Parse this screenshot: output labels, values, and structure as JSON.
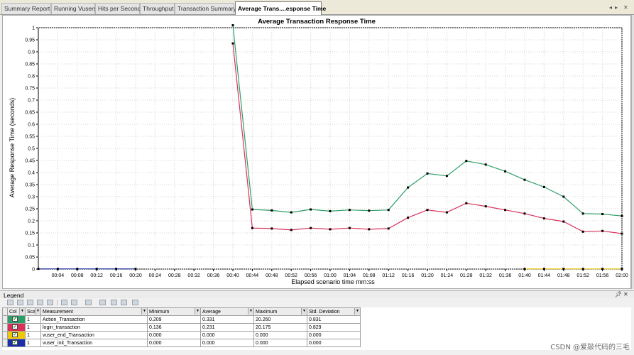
{
  "tabs": [
    {
      "label": "Summary Report",
      "active": false
    },
    {
      "label": "Running Vusers",
      "active": false
    },
    {
      "label": "Hits per Second",
      "active": false
    },
    {
      "label": "Throughput",
      "active": false
    },
    {
      "label": "Transaction Summary",
      "active": false
    },
    {
      "label": "Average Trans....esponse Time",
      "active": true
    }
  ],
  "tab_nav": {
    "prev": "◂",
    "next": "▸",
    "close": "✕"
  },
  "chart_data": {
    "type": "line",
    "title": "Average Transaction Response Time",
    "xlabel": "Elapsed scenario time mm:ss",
    "ylabel": "Average Response Time (seconds)",
    "ylim": [
      0,
      1
    ],
    "xlim_seconds": [
      0,
      120
    ],
    "y_ticks": [
      "0",
      "0.05",
      "0.1",
      "0.15",
      "0.2",
      "0.25",
      "0.3",
      "0.35",
      "0.4",
      "0.45",
      "0.5",
      "0.55",
      "0.6",
      "0.65",
      "0.7",
      "0.75",
      "0.8",
      "0.85",
      "0.9",
      "0.95",
      "1"
    ],
    "x_ticks": [
      "00:04",
      "00:08",
      "00:12",
      "00:16",
      "00:20",
      "00:24",
      "00:28",
      "00:32",
      "00:36",
      "00:40",
      "00:44",
      "00:48",
      "00:52",
      "00:56",
      "01:00",
      "01:04",
      "01:08",
      "01:12",
      "01:16",
      "01:20",
      "01:24",
      "01:28",
      "01:32",
      "01:36",
      "01:40",
      "01:44",
      "01:48",
      "01:52",
      "01:56",
      "02:00"
    ],
    "grid": true,
    "series": [
      {
        "name": "Action_Transaction",
        "color": "#2e9e68",
        "points": [
          [
            40,
            1.01
          ],
          [
            44,
            0.247
          ],
          [
            48,
            0.243
          ],
          [
            52,
            0.235
          ],
          [
            56,
            0.247
          ],
          [
            60,
            0.24
          ],
          [
            64,
            0.245
          ],
          [
            68,
            0.242
          ],
          [
            72,
            0.245
          ],
          [
            76,
            0.338
          ],
          [
            80,
            0.396
          ],
          [
            84,
            0.386
          ],
          [
            88,
            0.448
          ],
          [
            92,
            0.433
          ],
          [
            96,
            0.405
          ],
          [
            100,
            0.37
          ],
          [
            104,
            0.34
          ],
          [
            108,
            0.3
          ],
          [
            112,
            0.23
          ],
          [
            116,
            0.228
          ],
          [
            120,
            0.22
          ]
        ]
      },
      {
        "name": "login_transaction",
        "color": "#d9315a",
        "points": [
          [
            40,
            0.935
          ],
          [
            44,
            0.17
          ],
          [
            48,
            0.168
          ],
          [
            52,
            0.162
          ],
          [
            56,
            0.17
          ],
          [
            60,
            0.165
          ],
          [
            64,
            0.17
          ],
          [
            68,
            0.165
          ],
          [
            72,
            0.168
          ],
          [
            76,
            0.213
          ],
          [
            80,
            0.245
          ],
          [
            84,
            0.235
          ],
          [
            88,
            0.273
          ],
          [
            92,
            0.26
          ],
          [
            96,
            0.245
          ],
          [
            100,
            0.23
          ],
          [
            104,
            0.21
          ],
          [
            108,
            0.197
          ],
          [
            112,
            0.155
          ],
          [
            116,
            0.158
          ],
          [
            120,
            0.147
          ]
        ]
      },
      {
        "name": "vuser_end_Transaction",
        "color": "#f0c800",
        "points": [
          [
            100,
            0.001
          ],
          [
            104,
            0.001
          ],
          [
            108,
            0.001
          ],
          [
            112,
            0.001
          ],
          [
            116,
            0.001
          ],
          [
            120,
            0.001
          ]
        ]
      },
      {
        "name": "vuser_init_Transaction",
        "color": "#1a2ea8",
        "points": [
          [
            0,
            0.001
          ],
          [
            4,
            0.001
          ],
          [
            8,
            0.001
          ],
          [
            12,
            0.001
          ],
          [
            16,
            0.001
          ],
          [
            20,
            0.001
          ]
        ]
      }
    ]
  },
  "legend": {
    "title": "Legend",
    "pin_icon": "pin-icon",
    "close_icon": "close-icon",
    "columns": [
      "Col",
      "Sca",
      "Measurement",
      "Minimum",
      "Average",
      "Maximum",
      "Std. Deviation"
    ],
    "rows": [
      {
        "color": "#2e9e68",
        "checked": "✔",
        "scale": "1",
        "measurement": "Action_Transaction",
        "minimum": "0.209",
        "average": "0.331",
        "maximum": "20.260",
        "std": "0.831"
      },
      {
        "color": "#d9315a",
        "checked": "✔",
        "scale": "1",
        "measurement": "login_transaction",
        "minimum": "0.136",
        "average": "0.231",
        "maximum": "20.175",
        "std": "0.829"
      },
      {
        "color": "#f0c800",
        "checked": "✔",
        "scale": "1",
        "measurement": "vuser_end_Transaction",
        "minimum": "0.000",
        "average": "0.000",
        "maximum": "0.000",
        "std": "0.000"
      },
      {
        "color": "#1a2ea8",
        "checked": "✔",
        "scale": "1",
        "measurement": "vuser_init_Transaction",
        "minimum": "0.000",
        "average": "0.000",
        "maximum": "0.000",
        "std": "0.000"
      }
    ]
  },
  "watermark": "CSDN @爱敲代码的三毛"
}
